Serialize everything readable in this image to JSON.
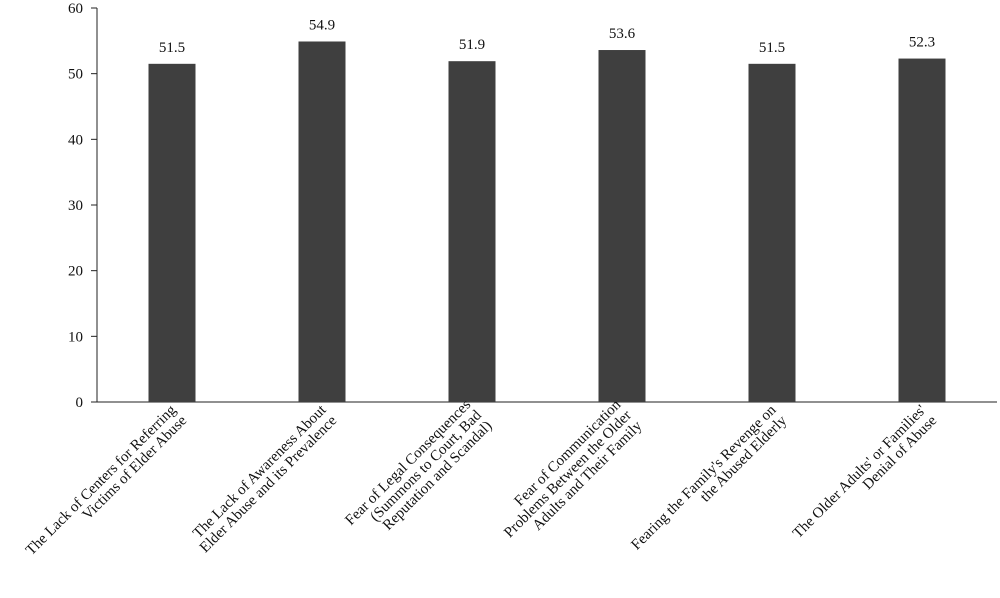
{
  "chart_data": {
    "type": "bar",
    "title": "",
    "xlabel": "",
    "ylabel": "",
    "categories": [
      [
        "The Lack of Centers for Referring",
        "Victims of Elder Abuse"
      ],
      [
        "The Lack of Awareness About",
        "Elder Abuse and its Prevalence"
      ],
      [
        "Fear of Legal Consequences",
        "(Summons to Court, Bad",
        "Reputation and Scandal)"
      ],
      [
        "Fear of Communication",
        "Problems Between the Older",
        "Adults and Their Family"
      ],
      [
        "Fearing the Family's Revenge on",
        "the Abused Elderly"
      ],
      [
        "The Older Adults' or Families'",
        "Denial of Abuse"
      ]
    ],
    "values": [
      51.5,
      54.9,
      51.9,
      53.6,
      51.5,
      52.3
    ],
    "data_labels": [
      "51.5",
      "54.9",
      "51.9",
      "53.6",
      "51.5",
      "52.3"
    ],
    "ylim": [
      0,
      60
    ],
    "yticks": [
      0,
      10,
      20,
      30,
      40,
      50,
      60
    ],
    "grid": false,
    "legend": "none",
    "bar_color": "#3f3f3f"
  }
}
